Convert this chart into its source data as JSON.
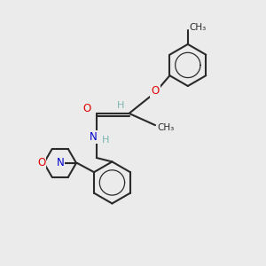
{
  "background_color": "#ebebeb",
  "bond_color": "#2a2a2a",
  "bond_width": 1.5,
  "atom_colors": {
    "O": "#e00000",
    "N": "#0000cc",
    "C": "#2a2a2a",
    "H": "#7ab5b5"
  },
  "font_size": 8.5,
  "figsize": [
    3.0,
    3.0
  ],
  "dpi": 100
}
